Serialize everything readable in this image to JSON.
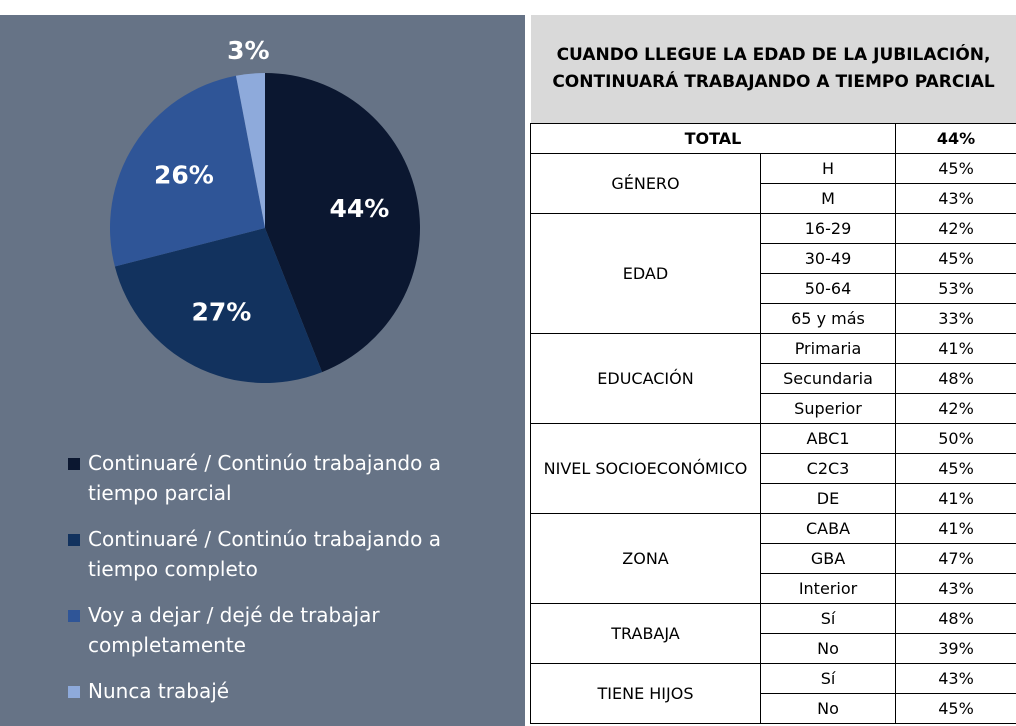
{
  "chart_data": {
    "type": "pie",
    "categories": [
      "Continuaré / Continúo trabajando a tiempo parcial",
      "Continuaré / Continúo trabajando a tiempo completo",
      "Voy a dejar / dejé de trabajar completamente",
      "Nunca trabajé"
    ],
    "values": [
      44,
      27,
      26,
      3
    ],
    "value_labels": [
      "44%",
      "27%",
      "26%",
      "3%"
    ],
    "colors": [
      "#0b1730",
      "#12325e",
      "#2f5597",
      "#8eaadb"
    ]
  },
  "table": {
    "title": "CUANDO LLEGUE LA EDAD DE LA JUBILACIÓN, CONTINUARÁ TRABAJANDO A TIEMPO PARCIAL",
    "total": [
      "TOTAL",
      "44%"
    ],
    "groups": [
      {
        "name": "GÉNERO",
        "rows": [
          [
            "H",
            "45%"
          ],
          [
            "M",
            "43%"
          ]
        ]
      },
      {
        "name": "EDAD",
        "rows": [
          [
            "16-29",
            "42%"
          ],
          [
            "30-49",
            "45%"
          ],
          [
            "50-64",
            "53%"
          ],
          [
            "65 y más",
            "33%"
          ]
        ]
      },
      {
        "name": "EDUCACIÓN",
        "rows": [
          [
            "Primaria",
            "41%"
          ],
          [
            "Secundaria",
            "48%"
          ],
          [
            "Superior",
            "42%"
          ]
        ]
      },
      {
        "name": "NIVEL SOCIOECONÓMICO",
        "rows": [
          [
            "ABC1",
            "50%"
          ],
          [
            "C2C3",
            "45%"
          ],
          [
            "DE",
            "41%"
          ]
        ]
      },
      {
        "name": "ZONA",
        "rows": [
          [
            "CABA",
            "41%"
          ],
          [
            "GBA",
            "47%"
          ],
          [
            "Interior",
            "43%"
          ]
        ]
      },
      {
        "name": "TRABAJA",
        "rows": [
          [
            "Sí",
            "48%"
          ],
          [
            "No",
            "39%"
          ]
        ]
      },
      {
        "name": "TIENE HIJOS",
        "rows": [
          [
            "Sí",
            "43%"
          ],
          [
            "No",
            "45%"
          ]
        ]
      }
    ]
  }
}
